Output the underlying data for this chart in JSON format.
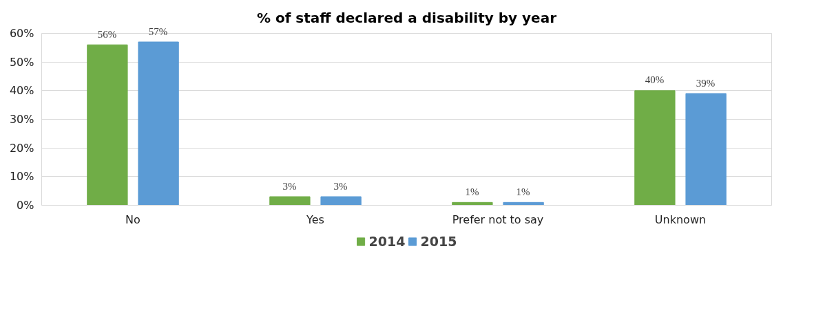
{
  "chart_data": {
    "type": "bar",
    "title": "% of staff declared a disability by year",
    "categories": [
      "No",
      "Yes",
      "Prefer not to say",
      "Unknown"
    ],
    "series": [
      {
        "name": "2014",
        "color": "#70ad47",
        "values": [
          56,
          3,
          1,
          40
        ],
        "value_labels": [
          "56%",
          "3%",
          "1%",
          "40%"
        ]
      },
      {
        "name": "2015",
        "color": "#5b9bd5",
        "values": [
          57,
          3,
          1,
          39
        ],
        "value_labels": [
          "57%",
          "3%",
          "1%",
          "39%"
        ]
      }
    ],
    "ylim": [
      0,
      60
    ],
    "yticks": [
      {
        "value": 0,
        "label": "0%"
      },
      {
        "value": 10,
        "label": "10%"
      },
      {
        "value": 20,
        "label": "20%"
      },
      {
        "value": 30,
        "label": "30%"
      },
      {
        "value": 40,
        "label": "40%"
      },
      {
        "value": 50,
        "label": "50%"
      },
      {
        "value": 60,
        "label": "60%"
      }
    ],
    "grid": "y",
    "legend": "bottom"
  }
}
